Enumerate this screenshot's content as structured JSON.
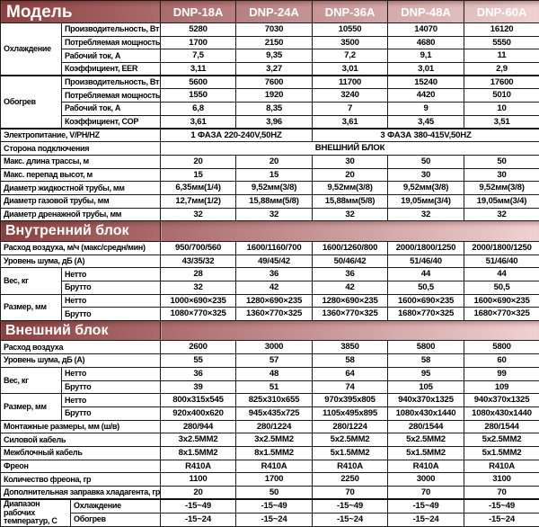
{
  "colors": {
    "grad_start": "#8d4040",
    "grad_end": "#f0d2d2",
    "border": "#1c1c1c",
    "header_text": "#ffffff",
    "body_text": "#000000"
  },
  "header": {
    "model_label": "Модель",
    "columns": [
      "DNP-18A",
      "DNP-24A",
      "DNP-36A",
      "DNP-48A",
      "DNP-60A"
    ]
  },
  "sections": [
    {
      "type": "rows",
      "rows": [
        {
          "kind": "group",
          "group": "Охлаждение",
          "span": 4,
          "label": "Производительность, Вт",
          "values": [
            "5280",
            "7030",
            "10550",
            "14070",
            "16120"
          ]
        },
        {
          "kind": "sub",
          "label": "Потребляемая мощность, Вт",
          "values": [
            "1700",
            "2150",
            "3500",
            "4680",
            "5550"
          ]
        },
        {
          "kind": "sub",
          "label": "Рабочий ток, А",
          "values": [
            "7,5",
            "9,35",
            "7,2",
            "9,1",
            "11"
          ]
        },
        {
          "kind": "sub",
          "label": "Коэффициент, EER",
          "values": [
            "3,11",
            "3,27",
            "3,01",
            "3,01",
            "2,9"
          ]
        },
        {
          "kind": "group",
          "group": "Обогрев",
          "span": 4,
          "thick": true,
          "label": "Производительность, Вт",
          "values": [
            "5600",
            "7600",
            "11700",
            "15240",
            "17600"
          ]
        },
        {
          "kind": "sub",
          "label": "Потребляемая мощность, Вт",
          "values": [
            "1550",
            "1920",
            "3240",
            "4420",
            "5010"
          ]
        },
        {
          "kind": "sub",
          "label": "Рабочий ток, А",
          "values": [
            "6,8",
            "8,35",
            "7",
            "9",
            "10"
          ]
        },
        {
          "kind": "sub",
          "label": "Коэффициент, COP",
          "values": [
            "3,61",
            "3,96",
            "3,61",
            "3,45",
            "3,51"
          ]
        },
        {
          "kind": "plain",
          "thick": true,
          "label": "Электропитание, V/PH/HZ",
          "values": [
            {
              "text": "1 ФАЗА 220-240V,50HZ",
              "span": 2
            },
            {
              "text": "3 ФАЗА 380-415V,50HZ",
              "span": 3
            }
          ]
        },
        {
          "kind": "plain",
          "label": "Сторона подключения",
          "values": [
            {
              "text": "ВНЕШНИЙ БЛОК",
              "span": 5
            }
          ]
        },
        {
          "kind": "plain",
          "label": "Макс. длина трассы, м",
          "values": [
            "20",
            "20",
            "30",
            "50",
            "50"
          ]
        },
        {
          "kind": "plain",
          "label": "Макс. перепад высот, м",
          "values": [
            "15",
            "15",
            "20",
            "30",
            "30"
          ]
        },
        {
          "kind": "plain",
          "label": "Диаметр жидкостной трубы, мм",
          "values": [
            "6,35мм(1/4)",
            "9,52мм(3/8)",
            "9,52мм(3/8)",
            "9,52мм(3/8)",
            "9,52мм(3/8)"
          ]
        },
        {
          "kind": "plain",
          "label": "Диаметр газовой трубы, мм",
          "values": [
            "12,7мм(1/2)",
            "15,88мм(5/8)",
            "15,88мм(5/8)",
            "19,05мм(3/4)",
            "19,05мм(3/4)"
          ]
        },
        {
          "kind": "plain",
          "label": "Диаметр дренажной трубы, мм",
          "values": [
            "32",
            "32",
            "32",
            "32",
            "32"
          ]
        }
      ]
    },
    {
      "type": "section",
      "title": "Внутренний блок"
    },
    {
      "type": "rows",
      "rows": [
        {
          "kind": "plain",
          "label": "Расход воздуха, м/ч (макс/средн/мин)",
          "values": [
            "950/700/560",
            "1600/1160/700",
            "1600/1260/800",
            "2000/1800/1250",
            "2000/1800/1250"
          ]
        },
        {
          "kind": "plain",
          "label": "Уровень шума, дБ (А)",
          "values": [
            "43/35/32",
            "49/45/42",
            "50/46/42",
            "51/46/40",
            "51/46/40"
          ]
        },
        {
          "kind": "group",
          "group": "Вес, кг",
          "span": 2,
          "label": "Нетто",
          "values": [
            "28",
            "36",
            "36",
            "44",
            "44"
          ]
        },
        {
          "kind": "sub",
          "label": "Брутто",
          "values": [
            "32",
            "42",
            "42",
            "50,5",
            "50,5"
          ]
        },
        {
          "kind": "group",
          "group": "Размер, мм",
          "span": 2,
          "label": "Нетто",
          "values": [
            "1000×690×235",
            "1280×690×235",
            "1280×690×235",
            "1600×690×235",
            "1600×690×235"
          ]
        },
        {
          "kind": "sub",
          "label": "Брутто",
          "values": [
            "1080×770×325",
            "1360×770×325",
            "1360×770×325",
            "1680×770×325",
            "1680×770×325"
          ]
        }
      ]
    },
    {
      "type": "section",
      "title": "Внешний блок"
    },
    {
      "type": "rows",
      "rows": [
        {
          "kind": "plain",
          "label": "Расход воздуха",
          "values": [
            "2600",
            "3000",
            "3850",
            "5800",
            "5800"
          ]
        },
        {
          "kind": "plain",
          "label": "Уровень шума, дБ (А)",
          "values": [
            "55",
            "57",
            "58",
            "58",
            "60"
          ]
        },
        {
          "kind": "group",
          "group": "Вес, кг",
          "span": 2,
          "label": "Нетто",
          "values": [
            "36",
            "48",
            "64",
            "95",
            "99"
          ]
        },
        {
          "kind": "sub",
          "label": "Брутто",
          "values": [
            "39",
            "51",
            "74",
            "105",
            "109"
          ]
        },
        {
          "kind": "group",
          "group": "Размер, мм",
          "span": 2,
          "label": "Нетто",
          "values": [
            "800x315x545",
            "825x310x655",
            "970x395x805",
            "940x370x1325",
            "940x370x1325"
          ]
        },
        {
          "kind": "sub",
          "label": "Брутто",
          "values": [
            "920x400x620",
            "945x435x725",
            "1105x495x895",
            "1080x430x1440",
            "1080x430x1440"
          ]
        },
        {
          "kind": "plain",
          "label": "Монтажные размеры, мм (ш/в)",
          "values": [
            "280/944",
            "280/1224",
            "280/1224",
            "280/1544",
            "280/1544"
          ]
        },
        {
          "kind": "plain",
          "label": "Силовой кабель",
          "values": [
            "3x2.5MM2",
            "3x2.5MM2",
            "5x2.5MM2",
            "5x2.5MM2",
            "5x2.5MM2"
          ]
        },
        {
          "kind": "plain",
          "label": "Межблочный кабель",
          "values": [
            "8x1.5MM2",
            "8x1.5MM2",
            "5x1.5MM2",
            "5x1.5MM2",
            "5x1.5MM2"
          ]
        },
        {
          "kind": "plain",
          "label": "Фреон",
          "values": [
            "R410A",
            "R410A",
            "R410A",
            "R410A",
            "R410A"
          ]
        },
        {
          "kind": "plain",
          "label": "Количество фреона, гр",
          "values": [
            "1100",
            "1700",
            "2250",
            "3000",
            "3100"
          ]
        },
        {
          "kind": "plain",
          "label": "Дополнительная заправка хладагента, гр",
          "values": [
            "20",
            "50",
            "70",
            "70",
            "70"
          ]
        },
        {
          "kind": "group",
          "wide": true,
          "thick": true,
          "group": "Диапазон рабочих температур, С",
          "span": 2,
          "label": "Охлаждение",
          "values": [
            "-15~49",
            "-15~49",
            "-15~49",
            "-15~49",
            "-15~49"
          ]
        },
        {
          "kind": "sub",
          "label": "Обогрев",
          "values": [
            "-15~24",
            "-15~24",
            "-15~24",
            "-15~24",
            "-15~24"
          ]
        }
      ]
    }
  ]
}
